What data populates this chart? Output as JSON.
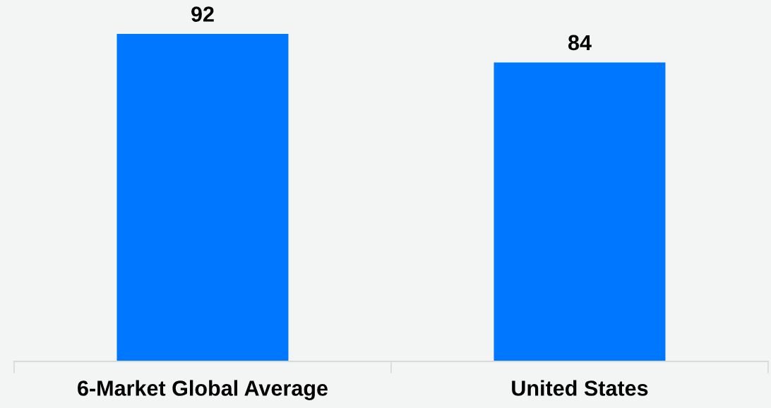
{
  "chart_data": {
    "type": "bar",
    "categories": [
      "6-Market Global Average",
      "United States"
    ],
    "values": [
      92,
      84
    ],
    "color": "#0077ff",
    "tick_labels": "x",
    "data_labels": true
  }
}
